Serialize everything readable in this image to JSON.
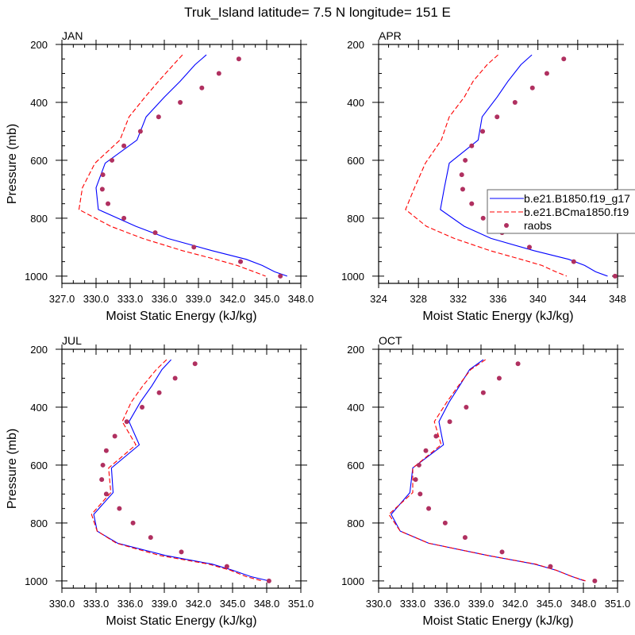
{
  "title": "Truk_Island  latitude= 7.5 N longitude= 151 E",
  "legend": {
    "placement": "right-middle of APR panel",
    "entries": [
      {
        "label": "b.e21.B1850.f19_g17",
        "style": "solid",
        "color": "#0000ff"
      },
      {
        "label": "b.e21.BCma1850.f19",
        "style": "dashed",
        "color": "#ff0000"
      },
      {
        "label": "raobs",
        "style": "marker",
        "color": "#b03060"
      }
    ]
  },
  "colors": {
    "model_solid": "#0000ff",
    "model_dashed": "#ff0000",
    "raobs": "#b03060"
  },
  "chart_data": [
    {
      "type": "line",
      "panel_label": "JAN",
      "xlabel": "Moist Static Energy (kJ/kg)",
      "ylabel": "Pressure (mb)",
      "xlim": [
        327,
        348
      ],
      "ylim": [
        1025,
        200
      ],
      "xticks": [
        "327.0",
        "330.0",
        "333.0",
        "336.0",
        "339.0",
        "342.0",
        "345.0",
        "348.0"
      ],
      "yticks": [
        "200",
        "400",
        "600",
        "800",
        "1000"
      ],
      "model_pressure": [
        236,
        270,
        327,
        382,
        450,
        530,
        610,
        695,
        770,
        828,
        870,
        912,
        942,
        963,
        985,
        1000
      ],
      "series": [
        {
          "name": "b.e21.B1850.f19_g17",
          "values": [
            339.7,
            338.7,
            337.4,
            336.0,
            334.4,
            333.6,
            330.8,
            330.0,
            330.2,
            333.5,
            336.3,
            340.2,
            343.2,
            344.6,
            345.7,
            346.8
          ]
        },
        {
          "name": "b.e21.BCma1850.f19",
          "values": [
            337.6,
            336.8,
            335.5,
            334.3,
            332.9,
            332.1,
            329.9,
            328.8,
            328.5,
            331.3,
            334.1,
            337.6,
            340.5,
            342.4,
            343.9,
            344.9
          ]
        }
      ],
      "raobs": {
        "name": "raobs",
        "pressure": [
          250,
          300,
          350,
          400,
          450,
          500,
          550,
          600,
          650,
          700,
          750,
          800,
          850,
          900,
          950,
          1000
        ],
        "values": [
          342.55,
          340.8,
          339.3,
          337.4,
          335.5,
          333.9,
          332.45,
          331.4,
          330.6,
          330.55,
          331.05,
          332.45,
          335.2,
          338.6,
          342.7,
          346.2
        ]
      }
    },
    {
      "type": "line",
      "panel_label": "APR",
      "xlabel": "Moist Static Energy (kJ/kg)",
      "ylabel": "",
      "xlim": [
        324,
        348
      ],
      "ylim": [
        1025,
        200
      ],
      "xticks": [
        "324",
        "328",
        "332",
        "336",
        "340",
        "344",
        "348"
      ],
      "yticks": [
        "200",
        "400",
        "600",
        "800",
        "1000"
      ],
      "model_pressure": [
        236,
        270,
        327,
        382,
        450,
        530,
        610,
        695,
        770,
        828,
        870,
        912,
        942,
        963,
        985,
        1000
      ],
      "series": [
        {
          "name": "b.e21.B1850.f19_g17",
          "values": [
            339.4,
            338.3,
            337.0,
            335.9,
            334.4,
            334.0,
            331.1,
            330.6,
            330.2,
            332.6,
            335.3,
            339.6,
            343.1,
            344.7,
            345.8,
            347.0
          ]
        },
        {
          "name": "b.e21.BCma1850.f19",
          "values": [
            336.0,
            334.9,
            333.5,
            332.6,
            331.1,
            330.3,
            328.7,
            327.6,
            326.7,
            328.8,
            331.6,
            335.2,
            338.3,
            340.4,
            341.8,
            342.9
          ]
        }
      ],
      "raobs": {
        "name": "raobs",
        "pressure": [
          250,
          300,
          350,
          400,
          450,
          500,
          550,
          600,
          650,
          700,
          750,
          800,
          850,
          900,
          950,
          1000
        ],
        "values": [
          342.6,
          340.9,
          339.45,
          337.7,
          335.9,
          334.45,
          333.35,
          332.7,
          332.35,
          332.45,
          333.35,
          334.5,
          336.4,
          339.15,
          343.6,
          347.75
        ]
      }
    },
    {
      "type": "line",
      "panel_label": "JUL",
      "xlabel": "Moist Static Energy (kJ/kg)",
      "ylabel": "Pressure (mb)",
      "xlim": [
        330,
        351
      ],
      "ylim": [
        1025,
        200
      ],
      "xticks": [
        "330.0",
        "333.0",
        "336.0",
        "339.0",
        "342.0",
        "345.0",
        "348.0",
        "351.0"
      ],
      "yticks": [
        "200",
        "400",
        "600",
        "800",
        "1000"
      ],
      "model_pressure": [
        236,
        270,
        327,
        382,
        450,
        530,
        610,
        695,
        770,
        828,
        870,
        912,
        942,
        963,
        985,
        1000
      ],
      "series": [
        {
          "name": "b.e21.B1850.f19_g17",
          "values": [
            339.6,
            338.8,
            337.9,
            336.9,
            335.9,
            336.8,
            334.35,
            334.5,
            332.8,
            333.1,
            334.9,
            339.1,
            343.2,
            345.0,
            346.6,
            348.2
          ]
        },
        {
          "name": "b.e21.BCma1850.f19",
          "values": [
            339.2,
            338.3,
            337.1,
            336.1,
            335.3,
            336.5,
            334.1,
            334.3,
            332.6,
            333.1,
            334.8,
            338.6,
            342.9,
            344.8,
            346.2,
            347.6
          ]
        }
      ],
      "raobs": {
        "name": "raobs",
        "pressure": [
          250,
          300,
          350,
          400,
          450,
          500,
          550,
          600,
          650,
          700,
          750,
          800,
          850,
          900,
          950,
          1000
        ],
        "values": [
          341.7,
          339.95,
          338.55,
          337.05,
          335.7,
          334.65,
          333.9,
          333.6,
          333.5,
          333.9,
          335.05,
          336.25,
          337.8,
          340.5,
          344.5,
          348.2
        ]
      }
    },
    {
      "type": "line",
      "panel_label": "OCT",
      "xlabel": "Moist Static Energy (kJ/kg)",
      "ylabel": "",
      "xlim": [
        330,
        351
      ],
      "ylim": [
        1025,
        200
      ],
      "xticks": [
        "330.0",
        "333.0",
        "336.0",
        "339.0",
        "342.0",
        "345.0",
        "348.0",
        "351.0"
      ],
      "yticks": [
        "200",
        "400",
        "600",
        "800",
        "1000"
      ],
      "model_pressure": [
        236,
        270,
        327,
        382,
        450,
        530,
        610,
        695,
        770,
        828,
        870,
        912,
        942,
        963,
        985,
        1000
      ],
      "series": [
        {
          "name": "b.e21.B1850.f19_g17",
          "values": [
            339.2,
            338.0,
            337.1,
            336.2,
            335.3,
            335.7,
            333.0,
            332.75,
            331.1,
            331.9,
            334.4,
            339.6,
            343.7,
            345.6,
            347.0,
            348.1
          ]
        },
        {
          "name": "b.e21.BCma1850.f19",
          "values": [
            339.4,
            338.1,
            337.0,
            336.0,
            334.9,
            335.5,
            333.0,
            333.0,
            330.9,
            331.9,
            334.4,
            339.6,
            343.8,
            345.6,
            347.0,
            348.2
          ]
        }
      ],
      "raobs": {
        "name": "raobs",
        "pressure": [
          250,
          300,
          350,
          400,
          450,
          500,
          550,
          600,
          650,
          700,
          750,
          800,
          850,
          900,
          950,
          1000
        ],
        "values": [
          342.25,
          340.6,
          339.2,
          337.7,
          336.25,
          335.05,
          334.15,
          333.55,
          333.25,
          333.65,
          334.4,
          335.85,
          337.6,
          340.85,
          345.1,
          349.0
        ]
      }
    }
  ]
}
